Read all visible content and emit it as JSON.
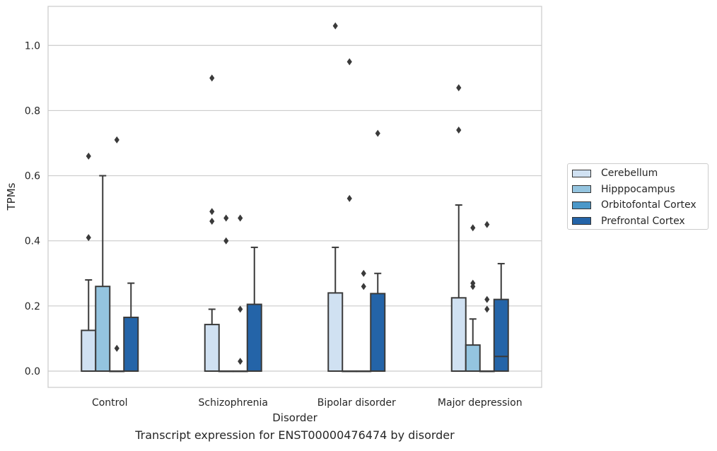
{
  "chart_data": {
    "type": "box",
    "title": "",
    "caption": "Transcript expression for ENST00000476474 by disorder",
    "xlabel": "Disorder",
    "ylabel": "TPMs",
    "ylim": [
      -0.05,
      1.12
    ],
    "yticks": [
      0.0,
      0.2,
      0.4,
      0.6,
      0.8,
      1.0
    ],
    "ytick_labels": [
      "0.0",
      "0.2",
      "0.4",
      "0.6",
      "0.8",
      "1.0"
    ],
    "grid": "horizontal",
    "legend_position": "right",
    "categories": [
      "Control",
      "Schizophrenia",
      "Bipolar disorder",
      "Major depression"
    ],
    "series": [
      {
        "name": "Cerebellum",
        "color": "#d0e1f2",
        "boxes": [
          {
            "q1": 0.0,
            "median": 0.0,
            "q3": 0.125,
            "whisker_low": 0.0,
            "whisker_high": 0.28,
            "outliers": [
              0.41,
              0.66
            ]
          },
          {
            "q1": 0.0,
            "median": 0.0,
            "q3": 0.143,
            "whisker_low": 0.0,
            "whisker_high": 0.19,
            "outliers": [
              0.46,
              0.49,
              0.9
            ]
          },
          {
            "q1": 0.0,
            "median": 0.0,
            "q3": 0.24,
            "whisker_low": 0.0,
            "whisker_high": 0.38,
            "outliers": [
              1.06
            ]
          },
          {
            "q1": 0.0,
            "median": 0.0,
            "q3": 0.225,
            "whisker_low": 0.0,
            "whisker_high": 0.51,
            "outliers": [
              0.74,
              0.87
            ]
          }
        ]
      },
      {
        "name": "Hipppocampus",
        "color": "#94c4df",
        "boxes": [
          {
            "q1": 0.0,
            "median": 0.0,
            "q3": 0.26,
            "whisker_low": 0.0,
            "whisker_high": 0.6,
            "outliers": []
          },
          {
            "q1": 0.0,
            "median": 0.0,
            "q3": 0.0,
            "whisker_low": 0.0,
            "whisker_high": 0.0,
            "outliers": [
              0.4,
              0.47
            ]
          },
          {
            "q1": 0.0,
            "median": 0.0,
            "q3": 0.0,
            "whisker_low": 0.0,
            "whisker_high": 0.0,
            "outliers": [
              0.53,
              0.95
            ]
          },
          {
            "q1": 0.0,
            "median": 0.0,
            "q3": 0.08,
            "whisker_low": 0.0,
            "whisker_high": 0.16,
            "outliers": [
              0.26,
              0.27,
              0.44
            ]
          }
        ]
      },
      {
        "name": "Orbitofontal Cortex",
        "color": "#4b98c9",
        "boxes": [
          {
            "q1": 0.0,
            "median": 0.0,
            "q3": 0.0,
            "whisker_low": 0.0,
            "whisker_high": 0.0,
            "outliers": [
              0.07,
              0.71
            ]
          },
          {
            "q1": 0.0,
            "median": 0.0,
            "q3": 0.0,
            "whisker_low": 0.0,
            "whisker_high": 0.0,
            "outliers": [
              0.03,
              0.19,
              0.47
            ]
          },
          {
            "q1": 0.0,
            "median": 0.0,
            "q3": 0.0,
            "whisker_low": 0.0,
            "whisker_high": 0.0,
            "outliers": [
              0.26,
              0.3
            ]
          },
          {
            "q1": 0.0,
            "median": 0.0,
            "q3": 0.0,
            "whisker_low": 0.0,
            "whisker_high": 0.0,
            "outliers": [
              0.19,
              0.22,
              0.45
            ]
          }
        ]
      },
      {
        "name": "Prefrontal Cortex",
        "color": "#2464a8",
        "boxes": [
          {
            "q1": 0.0,
            "median": 0.0,
            "q3": 0.165,
            "whisker_low": 0.0,
            "whisker_high": 0.27,
            "outliers": []
          },
          {
            "q1": 0.0,
            "median": 0.0,
            "q3": 0.205,
            "whisker_low": 0.0,
            "whisker_high": 0.38,
            "outliers": []
          },
          {
            "q1": 0.0,
            "median": 0.0,
            "q3": 0.238,
            "whisker_low": 0.0,
            "whisker_high": 0.3,
            "outliers": [
              0.73
            ]
          },
          {
            "q1": 0.0,
            "median": 0.045,
            "q3": 0.22,
            "whisker_low": 0.0,
            "whisker_high": 0.33,
            "outliers": []
          }
        ]
      }
    ]
  }
}
